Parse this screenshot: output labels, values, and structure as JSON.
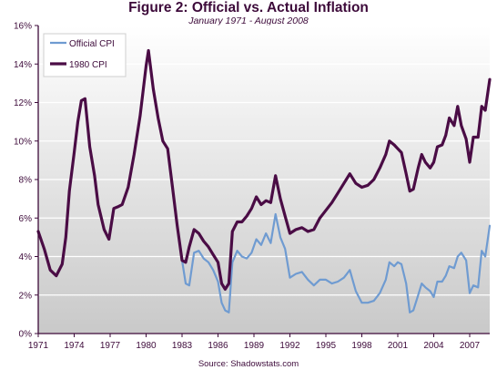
{
  "chart_data": {
    "type": "line",
    "title": "Figure 2: Official vs. Actual Inflation",
    "subtitle": "January 1971 - August 2008",
    "source": "Source: Shadowstats.com",
    "xlabel": "",
    "ylabel": "",
    "xlim": [
      1971.0,
      2008.67
    ],
    "ylim": [
      0,
      16
    ],
    "x_ticks": [
      1971,
      1974,
      1977,
      1980,
      1983,
      1986,
      1989,
      1992,
      1995,
      1998,
      2001,
      2004,
      2007
    ],
    "x_tick_labels": [
      "1971",
      "1974",
      "1977",
      "1980",
      "1983",
      "1986",
      "1989",
      "1992",
      "1995",
      "1998",
      "2001",
      "2004",
      "2007"
    ],
    "y_ticks": [
      0,
      2,
      4,
      6,
      8,
      10,
      12,
      14,
      16
    ],
    "y_tick_labels": [
      "0%",
      "2%",
      "4%",
      "6%",
      "8%",
      "10%",
      "12%",
      "14%",
      "16%"
    ],
    "grid": "horizontal",
    "legend_position": "top-left",
    "colors": {
      "official": "#6f9bd1",
      "cpi1980": "#4a0c45",
      "axis": "#3d0a3a",
      "bg_top": "#ffffff",
      "bg_bottom": "#c9c9c9"
    },
    "series": [
      {
        "name": "Official CPI",
        "x": [
          1971.0,
          1971.5,
          1972.0,
          1972.5,
          1973.0,
          1973.3,
          1973.6,
          1974.0,
          1974.3,
          1974.6,
          1974.9,
          1975.3,
          1975.7,
          1976.0,
          1976.5,
          1976.9,
          1977.3,
          1977.7,
          1978.0,
          1978.5,
          1979.0,
          1979.5,
          1980.0,
          1980.2,
          1980.6,
          1981.0,
          1981.4,
          1981.8,
          1982.2,
          1982.6,
          1983.0,
          1983.3,
          1983.6,
          1984.0,
          1984.4,
          1984.8,
          1985.2,
          1985.6,
          1986.0,
          1986.3,
          1986.6,
          1986.9,
          1987.2,
          1987.6,
          1988.0,
          1988.4,
          1988.8,
          1989.2,
          1989.6,
          1990.0,
          1990.4,
          1990.8,
          1991.2,
          1991.6,
          1992.0,
          1992.5,
          1993.0,
          1993.5,
          1994.0,
          1994.5,
          1995.0,
          1995.5,
          1996.0,
          1996.5,
          1997.0,
          1997.5,
          1998.0,
          1998.5,
          1999.0,
          1999.5,
          2000.0,
          2000.3,
          2000.7,
          2001.0,
          2001.3,
          2001.7,
          2002.0,
          2002.3,
          2002.7,
          2003.0,
          2003.3,
          2003.7,
          2004.0,
          2004.3,
          2004.7,
          2005.0,
          2005.3,
          2005.7,
          2006.0,
          2006.3,
          2006.7,
          2007.0,
          2007.3,
          2007.7,
          2008.0,
          2008.3,
          2008.67
        ],
        "values": [
          5.3,
          4.4,
          3.3,
          3.0,
          3.6,
          5.0,
          7.4,
          9.4,
          11.0,
          12.1,
          12.2,
          9.7,
          8.2,
          6.7,
          5.4,
          4.9,
          6.5,
          6.6,
          6.7,
          7.6,
          9.3,
          11.3,
          13.9,
          14.7,
          12.7,
          11.2,
          10.0,
          9.6,
          7.6,
          5.6,
          3.8,
          2.6,
          2.5,
          4.2,
          4.3,
          3.9,
          3.7,
          3.3,
          2.7,
          1.6,
          1.2,
          1.1,
          3.7,
          4.3,
          4.0,
          3.9,
          4.2,
          4.9,
          4.6,
          5.2,
          4.7,
          6.2,
          5.0,
          4.4,
          2.9,
          3.1,
          3.2,
          2.8,
          2.5,
          2.8,
          2.8,
          2.6,
          2.7,
          2.9,
          3.3,
          2.2,
          1.6,
          1.6,
          1.7,
          2.1,
          2.8,
          3.7,
          3.5,
          3.7,
          3.6,
          2.6,
          1.1,
          1.2,
          2.0,
          2.6,
          2.4,
          2.2,
          1.9,
          2.7,
          2.7,
          3.0,
          3.5,
          3.4,
          4.0,
          4.2,
          3.8,
          2.1,
          2.5,
          2.4,
          4.3,
          4.0,
          5.6
        ]
      },
      {
        "name": "1980 CPI",
        "x": [
          1971.0,
          1971.5,
          1972.0,
          1972.5,
          1973.0,
          1973.3,
          1973.6,
          1974.0,
          1974.3,
          1974.6,
          1974.9,
          1975.3,
          1975.7,
          1976.0,
          1976.5,
          1976.9,
          1977.3,
          1977.7,
          1978.0,
          1978.5,
          1979.0,
          1979.5,
          1980.0,
          1980.2,
          1980.6,
          1981.0,
          1981.4,
          1981.8,
          1982.2,
          1982.6,
          1983.0,
          1983.3,
          1983.6,
          1984.0,
          1984.4,
          1984.8,
          1985.2,
          1985.6,
          1986.0,
          1986.3,
          1986.6,
          1986.9,
          1987.2,
          1987.6,
          1988.0,
          1988.4,
          1988.8,
          1989.2,
          1989.6,
          1990.0,
          1990.4,
          1990.8,
          1991.2,
          1991.6,
          1992.0,
          1992.5,
          1993.0,
          1993.5,
          1994.0,
          1994.5,
          1995.0,
          1995.5,
          1996.0,
          1996.5,
          1997.0,
          1997.5,
          1998.0,
          1998.5,
          1999.0,
          1999.5,
          2000.0,
          2000.3,
          2000.7,
          2001.0,
          2001.3,
          2001.7,
          2002.0,
          2002.3,
          2002.7,
          2003.0,
          2003.3,
          2003.7,
          2004.0,
          2004.3,
          2004.7,
          2005.0,
          2005.3,
          2005.7,
          2006.0,
          2006.3,
          2006.7,
          2007.0,
          2007.3,
          2007.7,
          2008.0,
          2008.3,
          2008.67
        ],
        "values": [
          5.3,
          4.4,
          3.3,
          3.0,
          3.6,
          5.0,
          7.4,
          9.4,
          11.0,
          12.1,
          12.2,
          9.7,
          8.2,
          6.7,
          5.4,
          4.9,
          6.5,
          6.6,
          6.7,
          7.6,
          9.3,
          11.3,
          13.9,
          14.7,
          12.7,
          11.2,
          10.0,
          9.6,
          7.6,
          5.6,
          3.8,
          3.7,
          4.5,
          5.4,
          5.2,
          4.8,
          4.5,
          4.1,
          3.7,
          2.6,
          2.3,
          2.6,
          5.3,
          5.8,
          5.8,
          6.1,
          6.5,
          7.1,
          6.7,
          6.9,
          6.8,
          8.2,
          7.0,
          6.1,
          5.2,
          5.4,
          5.5,
          5.3,
          5.4,
          6.0,
          6.4,
          6.8,
          7.3,
          7.8,
          8.3,
          7.8,
          7.6,
          7.7,
          8.0,
          8.6,
          9.3,
          10.0,
          9.8,
          9.6,
          9.4,
          8.3,
          7.4,
          7.5,
          8.6,
          9.3,
          8.9,
          8.6,
          8.9,
          9.7,
          9.8,
          10.3,
          11.2,
          10.8,
          11.8,
          10.8,
          10.1,
          8.9,
          10.2,
          10.2,
          11.8,
          11.6,
          13.2
        ]
      }
    ]
  }
}
